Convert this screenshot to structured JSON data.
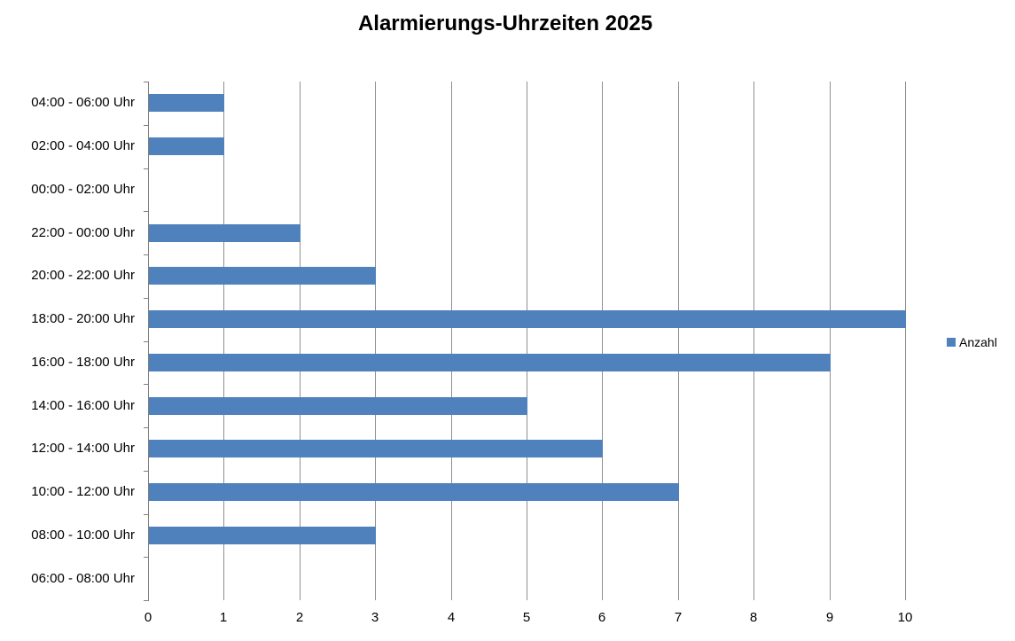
{
  "title": "Alarmierungs-Uhrzeiten 2025",
  "legend": {
    "label": "Anzahl",
    "position": "right"
  },
  "colors": {
    "bar": "#4f81bd",
    "gridline": "#8f8f8f",
    "axis": "#7f7f7f",
    "text": "#000000",
    "background": "#ffffff"
  },
  "chart_data": {
    "type": "bar",
    "orientation": "horizontal",
    "title": "Alarmierungs-Uhrzeiten 2025",
    "categories": [
      "04:00 - 06:00 Uhr",
      "02:00 - 04:00 Uhr",
      "00:00 - 02:00 Uhr",
      "22:00 - 00:00 Uhr",
      "20:00 - 22:00 Uhr",
      "18:00 - 20:00 Uhr",
      "16:00 - 18:00 Uhr",
      "14:00 - 16:00 Uhr",
      "12:00 - 14:00 Uhr",
      "10:00 - 12:00 Uhr",
      "08:00 - 10:00 Uhr",
      "06:00 - 08:00 Uhr"
    ],
    "series": [
      {
        "name": "Anzahl",
        "values": [
          1,
          1,
          0,
          2,
          3,
          10,
          9,
          5,
          6,
          7,
          3,
          0
        ]
      }
    ],
    "xlabel": "",
    "ylabel": "",
    "xlim": [
      0,
      10
    ],
    "x_ticks": [
      0,
      1,
      2,
      3,
      4,
      5,
      6,
      7,
      8,
      9,
      10
    ],
    "grid": true,
    "legend_position": "right"
  }
}
